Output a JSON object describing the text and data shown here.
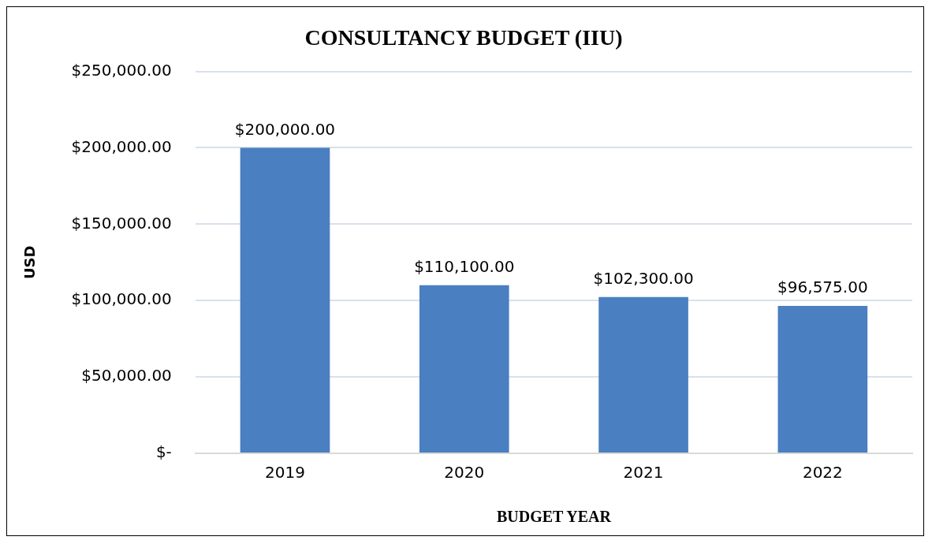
{
  "chart_data": {
    "type": "bar",
    "title": "CONSULTANCY BUDGET (IIU)",
    "xlabel": "BUDGET YEAR",
    "ylabel": "USD",
    "categories": [
      "2019",
      "2020",
      "2021",
      "2022"
    ],
    "values": [
      200000,
      110100,
      102300,
      96575
    ],
    "value_labels": [
      "$200,000.00",
      "$110,100.00",
      "$102,300.00",
      "$96,575.00"
    ],
    "color": "#4a7fc1",
    "ylim": [
      0,
      250000
    ],
    "yticks": [
      {
        "value": 0,
        "label": "$-"
      },
      {
        "value": 50000,
        "label": "$50,000.00"
      },
      {
        "value": 100000,
        "label": "$100,000.00"
      },
      {
        "value": 150000,
        "label": "$150,000.00"
      },
      {
        "value": 200000,
        "label": "$200,000.00"
      },
      {
        "value": 250000,
        "label": "$250,000.00"
      }
    ],
    "grid": "y"
  }
}
